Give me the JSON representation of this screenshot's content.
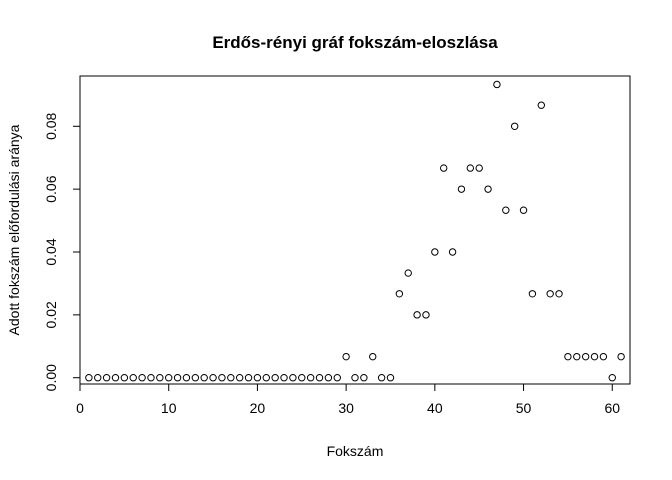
{
  "chart_data": {
    "type": "scatter",
    "title": "Erdős-rényi gráf fokszám-eloszlása",
    "xlabel": "Fokszám",
    "ylabel": "Adott fokszám előfordulási aránya",
    "xlim": [
      0,
      62
    ],
    "ylim": [
      -0.002,
      0.096
    ],
    "xticks": [
      0,
      10,
      20,
      30,
      40,
      50,
      60
    ],
    "xtick_labels": [
      "0",
      "10",
      "20",
      "30",
      "40",
      "50",
      "60"
    ],
    "yticks": [
      0.0,
      0.02,
      0.04,
      0.06,
      0.08
    ],
    "ytick_labels": [
      "0.00",
      "0.02",
      "0.04",
      "0.06",
      "0.08"
    ],
    "grid": false,
    "legend": "none",
    "marker": "open-circle",
    "x": [
      1,
      2,
      3,
      4,
      5,
      6,
      7,
      8,
      9,
      10,
      11,
      12,
      13,
      14,
      15,
      16,
      17,
      18,
      19,
      20,
      21,
      22,
      23,
      24,
      25,
      26,
      27,
      28,
      29,
      30,
      31,
      32,
      33,
      34,
      35,
      36,
      37,
      38,
      39,
      40,
      41,
      42,
      43,
      44,
      45,
      46,
      47,
      48,
      49,
      50,
      51,
      52,
      53,
      54,
      55,
      56,
      57,
      58,
      59,
      60,
      61
    ],
    "y": [
      0,
      0,
      0,
      0,
      0,
      0,
      0,
      0,
      0,
      0,
      0,
      0,
      0,
      0,
      0,
      0,
      0,
      0,
      0,
      0,
      0,
      0,
      0,
      0,
      0,
      0,
      0,
      0,
      0,
      0.0067,
      0,
      0,
      0.0067,
      0,
      0,
      0.0267,
      0.0333,
      0.02,
      0.02,
      0.04,
      0.0667,
      0.04,
      0.06,
      0.0667,
      0.0667,
      0.06,
      0.0933,
      0.0533,
      0.08,
      0.0533,
      0.0267,
      0.0867,
      0.0267,
      0.0267,
      0.0067,
      0.0067,
      0.0067,
      0.0067,
      0.0067,
      0,
      0.0067
    ]
  }
}
